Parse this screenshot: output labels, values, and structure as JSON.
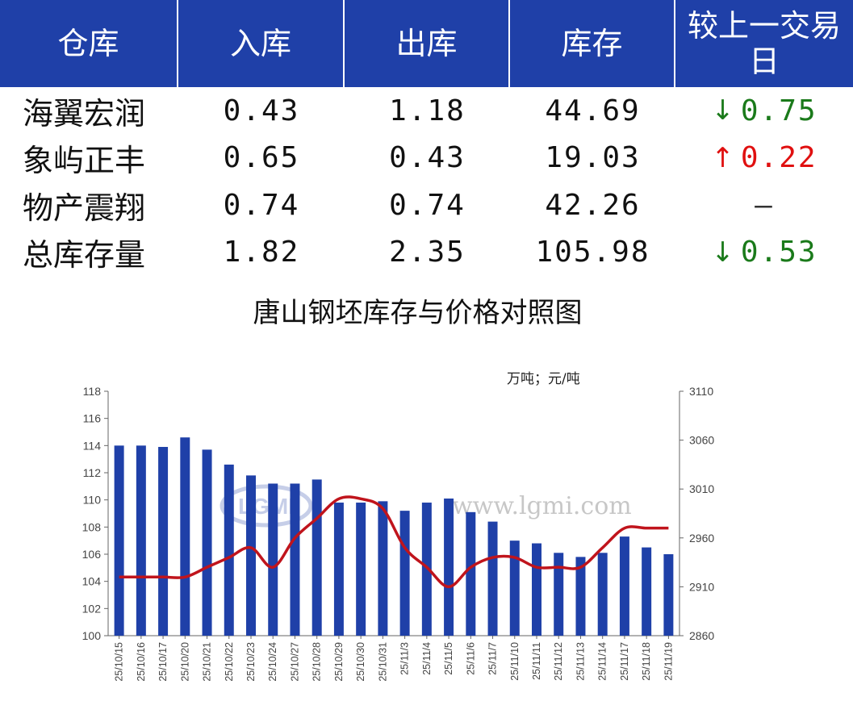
{
  "table": {
    "headers": [
      "仓库",
      "入库",
      "出库",
      "库存",
      "较上一交易日"
    ],
    "rows": [
      {
        "name": "海翼宏润",
        "in": "0.43",
        "out": "1.18",
        "stock": "44.69",
        "dir": "down",
        "arrow": "↓",
        "change": "0.75"
      },
      {
        "name": "象屿正丰",
        "in": "0.65",
        "out": "0.43",
        "stock": "19.03",
        "dir": "up",
        "arrow": "↑",
        "change": "0.22"
      },
      {
        "name": "物产震翔",
        "in": "0.74",
        "out": "0.74",
        "stock": "42.26",
        "dir": "none",
        "arrow": "",
        "change": "–"
      },
      {
        "name": "总库存量",
        "in": "1.82",
        "out": "2.35",
        "stock": "105.98",
        "dir": "down",
        "arrow": "↓",
        "change": "0.53"
      }
    ],
    "colors": {
      "header_bg": "#1f40a8",
      "down": "#1a7a1a",
      "up": "#e01010"
    }
  },
  "chart_data": {
    "type": "bar",
    "title": "唐山钢坯库存与价格对照图",
    "unit_label": "万吨；元/吨",
    "watermark": "www.lgmi.com",
    "categories": [
      "25/10/15",
      "25/10/16",
      "25/10/17",
      "25/10/20",
      "25/10/21",
      "25/10/22",
      "25/10/23",
      "25/10/24",
      "25/10/27",
      "25/10/28",
      "25/10/29",
      "25/10/30",
      "25/10/31",
      "25/11/3",
      "25/11/4",
      "25/11/5",
      "25/11/6",
      "25/11/7",
      "25/11/10",
      "25/11/11",
      "25/11/12",
      "25/11/13",
      "25/11/14",
      "25/11/17",
      "25/11/18",
      "25/11/19"
    ],
    "series": [
      {
        "kind": "bar",
        "axis": "left",
        "color": "#1f40a8",
        "values": [
          114.0,
          114.0,
          113.9,
          114.6,
          113.7,
          112.6,
          111.8,
          111.2,
          111.2,
          111.5,
          109.8,
          109.8,
          109.9,
          109.2,
          109.8,
          110.1,
          109.1,
          108.4,
          107.0,
          106.8,
          106.1,
          105.8,
          106.1,
          107.3,
          106.5,
          106.0
        ]
      },
      {
        "kind": "line",
        "axis": "right",
        "color": "#c0141c",
        "values": [
          2920,
          2920,
          2920,
          2920,
          2930,
          2940,
          2950,
          2930,
          2960,
          2980,
          3000,
          3000,
          2990,
          2950,
          2930,
          2910,
          2930,
          2940,
          2940,
          2930,
          2930,
          2930,
          2950,
          2970,
          2970,
          2970
        ]
      }
    ],
    "ylim_left": [
      100,
      118
    ],
    "yticks_left": [
      "100",
      "102",
      "104",
      "106",
      "108",
      "110",
      "112",
      "114",
      "116",
      "118"
    ],
    "ylim_right": [
      2860,
      3110
    ],
    "yticks_right": [
      "2860",
      "2910",
      "2960",
      "3010",
      "3060",
      "3110"
    ],
    "grid": false
  }
}
